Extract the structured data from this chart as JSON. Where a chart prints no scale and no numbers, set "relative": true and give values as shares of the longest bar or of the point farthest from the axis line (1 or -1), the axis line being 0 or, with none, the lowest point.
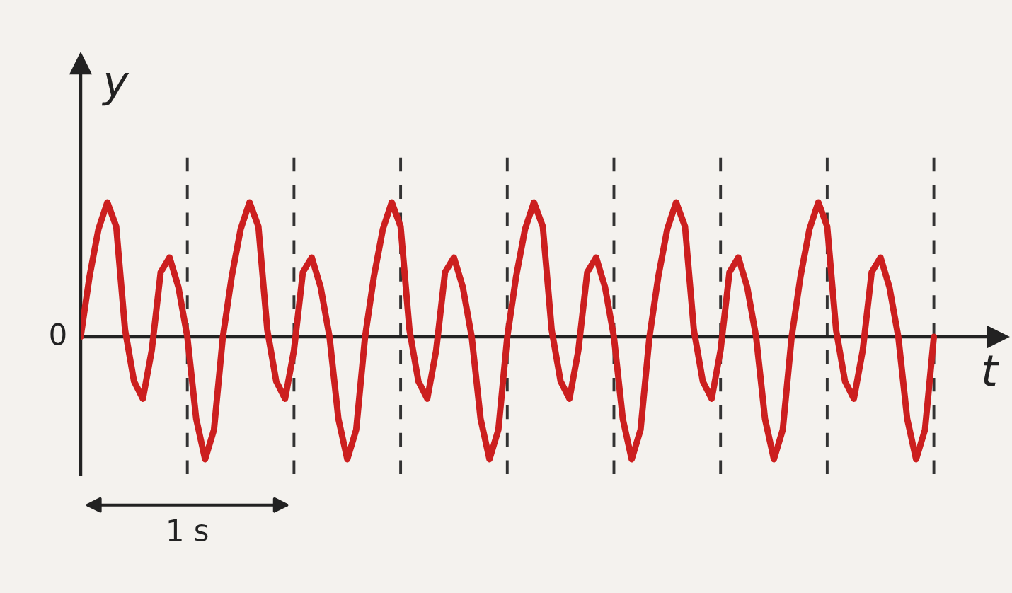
{
  "chart_data": {
    "type": "line",
    "relative": true,
    "xlabel": "t",
    "ylabel": "y",
    "categories": [
      null,
      null,
      null,
      null,
      null,
      null,
      null,
      null,
      null,
      null,
      null,
      null,
      null,
      null,
      null,
      null,
      null,
      null,
      null,
      null,
      null,
      null,
      null,
      null,
      null,
      null,
      null,
      null,
      null,
      null,
      null,
      null,
      null,
      null,
      null,
      null,
      null,
      null,
      null,
      null,
      null,
      null,
      null,
      null,
      null,
      null,
      null,
      null,
      null,
      null,
      null,
      null,
      null,
      null,
      null,
      null,
      null,
      null,
      null,
      null,
      null,
      null,
      null,
      null,
      null,
      null,
      null,
      null,
      null,
      null,
      null,
      null,
      null,
      null,
      null,
      null,
      null,
      null,
      null,
      null,
      null,
      null,
      null,
      null,
      null,
      null,
      null,
      null,
      null,
      null,
      null,
      null,
      null,
      null,
      null,
      null,
      null
    ],
    "series": [
      {
        "color": "#cc1f1f",
        "values": [
          0,
          0.45,
          0.8,
          1,
          0.82,
          0.05,
          -0.33,
          -0.46,
          -0.1,
          0.48,
          0.59,
          0.37,
          0,
          -0.61,
          -0.91,
          -0.69,
          0,
          0.45,
          0.8,
          1,
          0.82,
          0.05,
          -0.33,
          -0.46,
          -0.1,
          0.48,
          0.59,
          0.37,
          0,
          -0.61,
          -0.91,
          -0.69,
          0,
          0.45,
          0.8,
          1,
          0.82,
          0.05,
          -0.33,
          -0.46,
          -0.1,
          0.48,
          0.59,
          0.37,
          0,
          -0.61,
          -0.91,
          -0.69,
          0,
          0.45,
          0.8,
          1,
          0.82,
          0.05,
          -0.33,
          -0.46,
          -0.1,
          0.48,
          0.59,
          0.37,
          0,
          -0.61,
          -0.91,
          -0.69,
          0,
          0.45,
          0.8,
          1,
          0.82,
          0.05,
          -0.33,
          -0.46,
          -0.1,
          0.48,
          0.59,
          0.37,
          0,
          -0.61,
          -0.91,
          -0.69,
          0,
          0.45,
          0.8,
          1,
          0.82,
          0.05,
          -0.33,
          -0.46,
          -0.1,
          0.48,
          0.59,
          0.37,
          0,
          -0.61,
          -0.91,
          -0.69,
          0
        ]
      }
    ],
    "grid": "x",
    "line_style": "solid",
    "annotations": [
      "0",
      "1 s"
    ]
  }
}
